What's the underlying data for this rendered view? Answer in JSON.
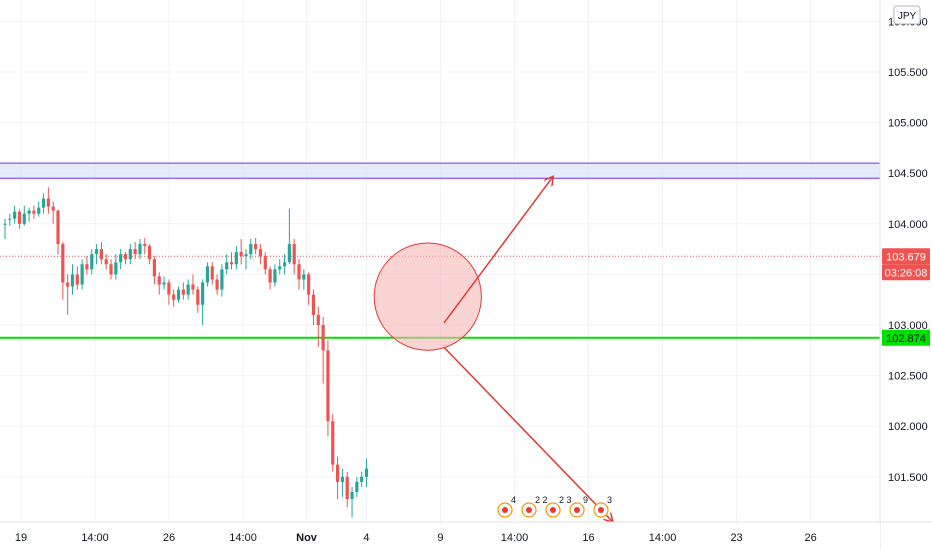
{
  "currency_badge": "JPY",
  "price_tags": {
    "last_price": "103.679",
    "countdown": "03:26:08",
    "level_price": "102.874"
  },
  "colors": {
    "up_candle": "#26a69a",
    "down_candle": "#ef5350",
    "level_line": "#00e000",
    "zone_border": "#7b2fd6",
    "zone_fill": "#dde6f7",
    "arrow": "#e53935",
    "ellipse_fill": "#f7b5b5",
    "ellipse_stroke": "#e53935"
  },
  "icons": [
    "event-flag-icon",
    "us-flag-icon"
  ],
  "events": [
    {
      "count": "4"
    },
    {
      "count": "2 2"
    },
    {
      "count": "2 3"
    },
    {
      "count": "9"
    },
    {
      "count": "3"
    }
  ],
  "chart_data": {
    "type": "candlestick",
    "title": "",
    "xlabel": "",
    "ylabel": "",
    "ylim": [
      101.0,
      106.05
    ],
    "y_ticks": [
      "101.500",
      "102.000",
      "102.500",
      "103.000",
      "103.500",
      "104.000",
      "104.500",
      "105.000",
      "105.500",
      "106.000"
    ],
    "x_ticks": [
      {
        "label": "19",
        "t": 0
      },
      {
        "label": "14:00",
        "t": 10.5
      },
      {
        "label": "26",
        "t": 21
      },
      {
        "label": "14:00",
        "t": 31.5
      },
      {
        "label": "Nov",
        "t": 40.5,
        "bold": true
      },
      {
        "label": "4",
        "t": 49
      },
      {
        "label": "9",
        "t": 59.5
      },
      {
        "label": "14:00",
        "t": 70
      },
      {
        "label": "16",
        "t": 80.5
      },
      {
        "label": "14:00",
        "t": 91
      },
      {
        "label": "23",
        "t": 101.5
      },
      {
        "label": "26",
        "t": 112
      }
    ],
    "grid": true,
    "last_price": 103.679,
    "horizontal_level": 102.874,
    "resistance_zone": [
      104.45,
      104.6
    ],
    "bottom_line": 101.05,
    "candles": [
      [
        104.0,
        104.05,
        103.85,
        104.0
      ],
      [
        104.05,
        104.1,
        103.98,
        104.05
      ],
      [
        104.05,
        104.18,
        104.0,
        104.12
      ],
      [
        104.12,
        104.14,
        103.95,
        104.0
      ],
      [
        104.0,
        104.18,
        103.98,
        104.1
      ],
      [
        104.1,
        104.16,
        104.02,
        104.13
      ],
      [
        104.13,
        104.18,
        104.05,
        104.1
      ],
      [
        104.1,
        104.22,
        104.07,
        104.16
      ],
      [
        104.16,
        104.3,
        104.1,
        104.25
      ],
      [
        104.25,
        104.36,
        104.1,
        104.17
      ],
      [
        104.17,
        104.22,
        104.0,
        104.13
      ],
      [
        104.13,
        104.14,
        103.7,
        103.8
      ],
      [
        103.8,
        103.82,
        103.25,
        103.42
      ],
      [
        103.42,
        103.5,
        103.1,
        103.38
      ],
      [
        103.38,
        103.6,
        103.3,
        103.5
      ],
      [
        103.5,
        103.58,
        103.35,
        103.4
      ],
      [
        103.4,
        103.65,
        103.35,
        103.6
      ],
      [
        103.6,
        103.68,
        103.5,
        103.55
      ],
      [
        103.55,
        103.75,
        103.5,
        103.7
      ],
      [
        103.7,
        103.8,
        103.6,
        103.75
      ],
      [
        103.75,
        103.82,
        103.6,
        103.65
      ],
      [
        103.65,
        103.7,
        103.55,
        103.6
      ],
      [
        103.6,
        103.65,
        103.45,
        103.5
      ],
      [
        103.5,
        103.7,
        103.45,
        103.62
      ],
      [
        103.62,
        103.75,
        103.55,
        103.7
      ],
      [
        103.7,
        103.72,
        103.6,
        103.65
      ],
      [
        103.65,
        103.8,
        103.6,
        103.75
      ],
      [
        103.75,
        103.82,
        103.65,
        103.7
      ],
      [
        103.7,
        103.85,
        103.65,
        103.8
      ],
      [
        103.8,
        103.86,
        103.7,
        103.78
      ],
      [
        103.78,
        103.8,
        103.6,
        103.65
      ],
      [
        103.65,
        103.68,
        103.4,
        103.48
      ],
      [
        103.48,
        103.52,
        103.3,
        103.4
      ],
      [
        103.4,
        103.48,
        103.35,
        103.42
      ],
      [
        103.42,
        103.45,
        103.2,
        103.3
      ],
      [
        103.3,
        103.35,
        103.18,
        103.25
      ],
      [
        103.25,
        103.38,
        103.22,
        103.35
      ],
      [
        103.35,
        103.42,
        103.25,
        103.3
      ],
      [
        103.3,
        103.45,
        103.25,
        103.4
      ],
      [
        103.4,
        103.5,
        103.3,
        103.35
      ],
      [
        103.35,
        103.38,
        103.12,
        103.2
      ],
      [
        103.2,
        103.45,
        103.0,
        103.42
      ],
      [
        103.42,
        103.62,
        103.38,
        103.58
      ],
      [
        103.58,
        103.62,
        103.4,
        103.45
      ],
      [
        103.45,
        103.5,
        103.3,
        103.35
      ],
      [
        103.35,
        103.6,
        103.28,
        103.55
      ],
      [
        103.55,
        103.7,
        103.5,
        103.62
      ],
      [
        103.62,
        103.72,
        103.55,
        103.6
      ],
      [
        103.6,
        103.78,
        103.55,
        103.72
      ],
      [
        103.72,
        103.85,
        103.6,
        103.68
      ],
      [
        103.68,
        103.75,
        103.55,
        103.7
      ],
      [
        103.7,
        103.85,
        103.65,
        103.8
      ],
      [
        103.8,
        103.86,
        103.7,
        103.75
      ],
      [
        103.75,
        103.8,
        103.6,
        103.68
      ],
      [
        103.68,
        103.72,
        103.5,
        103.55
      ],
      [
        103.55,
        103.58,
        103.35,
        103.42
      ],
      [
        103.42,
        103.6,
        103.38,
        103.55
      ],
      [
        103.55,
        103.65,
        103.5,
        103.58
      ],
      [
        103.58,
        103.7,
        103.5,
        103.62
      ],
      [
        103.62,
        104.15,
        103.6,
        103.8
      ],
      [
        103.8,
        103.85,
        103.5,
        103.6
      ],
      [
        103.6,
        103.65,
        103.35,
        103.45
      ],
      [
        103.45,
        103.55,
        103.35,
        103.5
      ],
      [
        103.5,
        103.52,
        103.2,
        103.3
      ],
      [
        103.3,
        103.35,
        103.0,
        103.1
      ],
      [
        103.1,
        103.18,
        102.78,
        103.0
      ],
      [
        103.0,
        103.08,
        102.42,
        102.75
      ],
      [
        102.75,
        102.85,
        101.9,
        102.05
      ],
      [
        102.05,
        102.12,
        101.55,
        101.62
      ],
      [
        101.62,
        101.7,
        101.28,
        101.45
      ],
      [
        101.45,
        101.58,
        101.3,
        101.5
      ],
      [
        101.5,
        101.55,
        101.2,
        101.28
      ],
      [
        101.28,
        101.4,
        101.1,
        101.35
      ],
      [
        101.35,
        101.5,
        101.3,
        101.45
      ],
      [
        101.45,
        101.55,
        101.4,
        101.5
      ],
      [
        101.5,
        101.68,
        101.4,
        101.58
      ]
    ],
    "_note": "",
    "annotations": [
      {
        "type": "ellipse",
        "center": [
          57.7,
          103.28
        ],
        "rx_days": 7.6,
        "ry_price": 0.53,
        "rotation_deg": 32
      },
      {
        "type": "arrow",
        "from": [
          60.0,
          103.02
        ],
        "to": [
          75.5,
          104.47
        ]
      },
      {
        "type": "arrow",
        "from": [
          60.0,
          102.78
        ],
        "to": [
          84.0,
          101.05
        ]
      }
    ]
  }
}
